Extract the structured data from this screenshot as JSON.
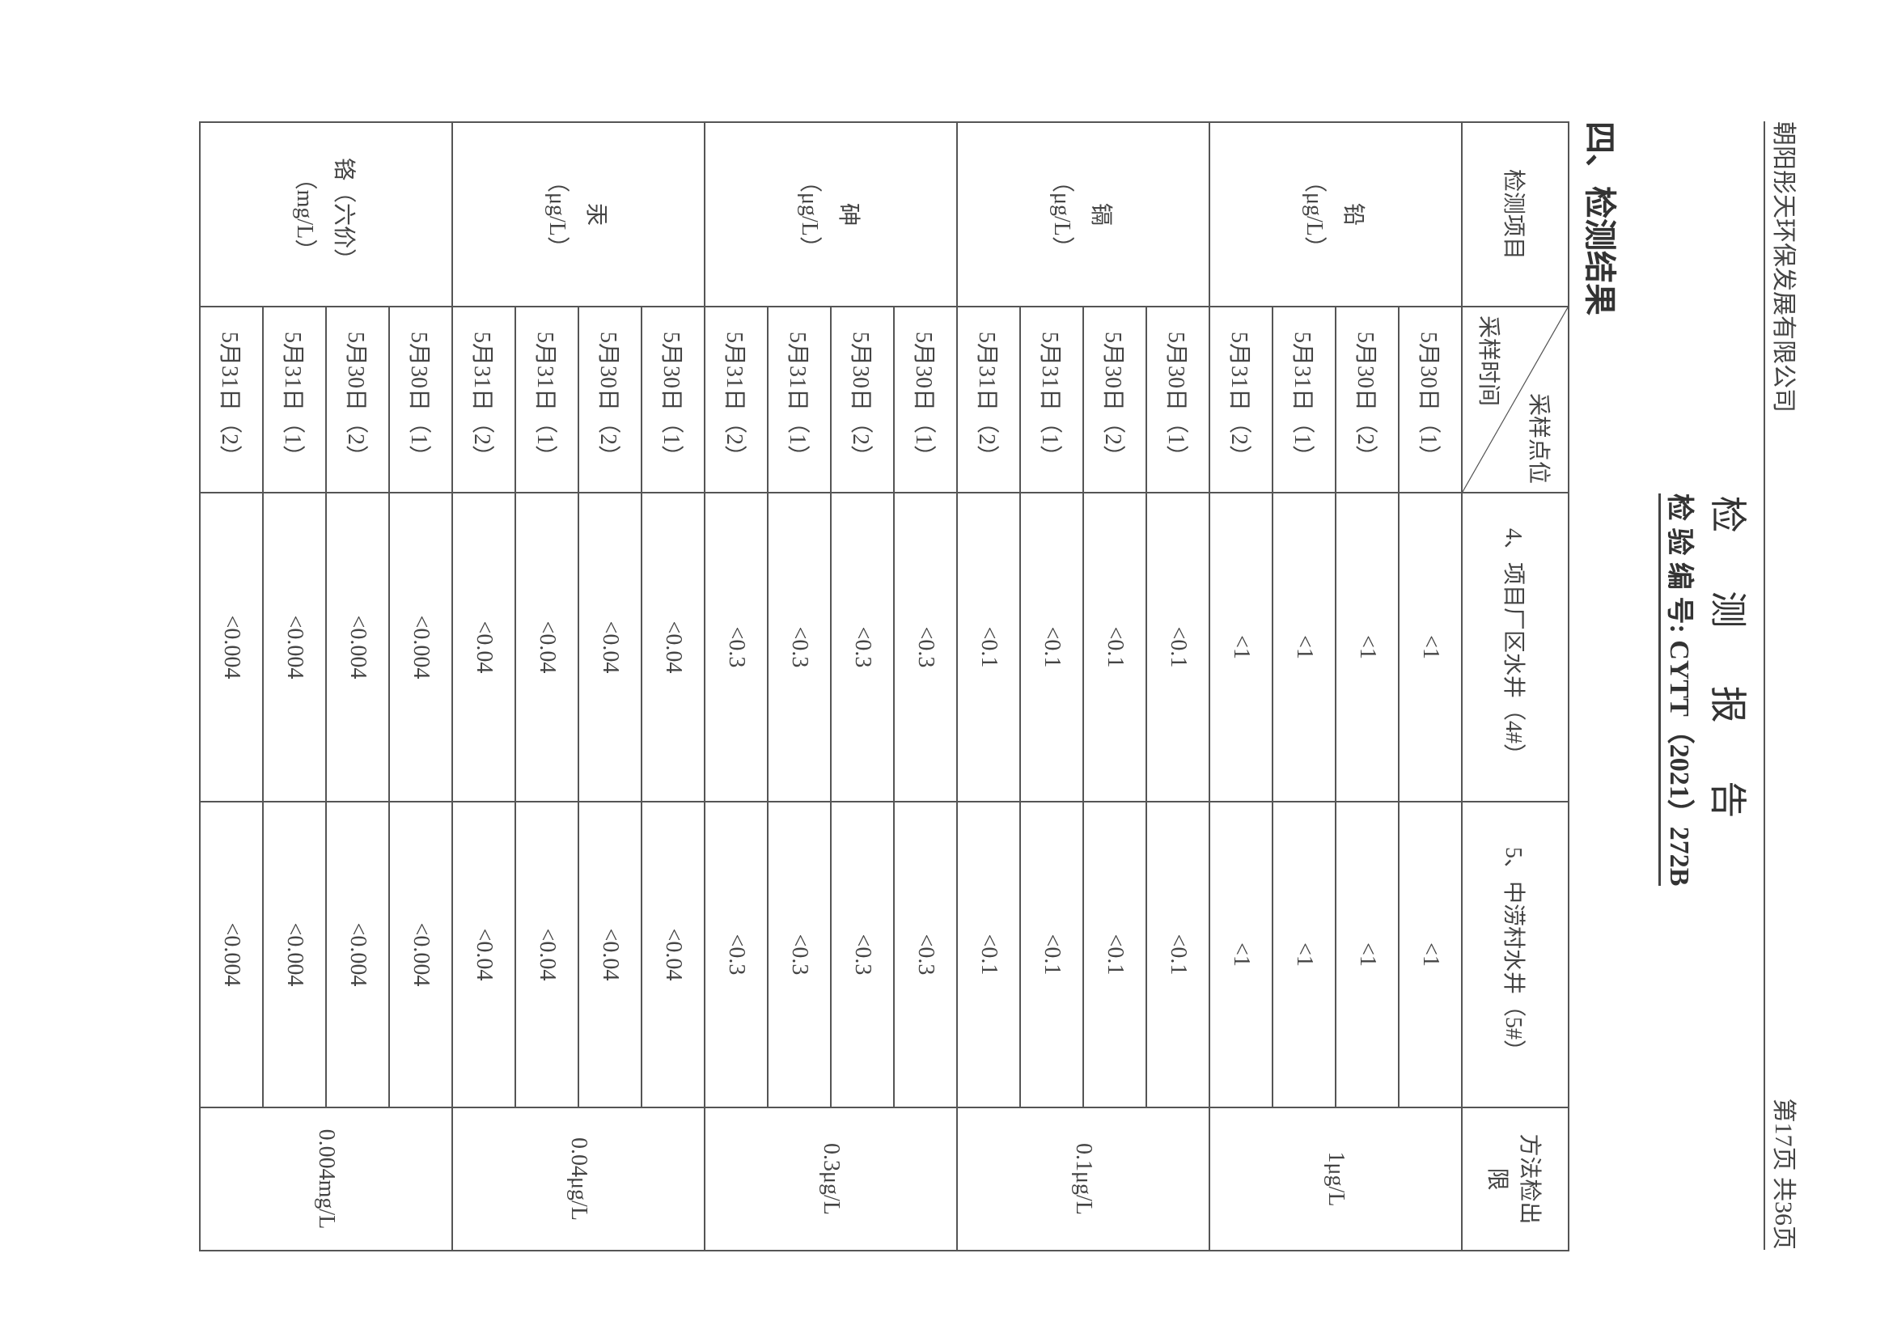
{
  "header": {
    "company": "朝阳彤天环保发展有限公司",
    "page": "第17页  共36页"
  },
  "title": "检 测 报 告",
  "report_code": "检 验 编 号: CYTT（2021）272B",
  "section": "四、检测结果",
  "table": {
    "col_item": "检测项目",
    "diag_top": "采样点位",
    "diag_bottom": "采样时间",
    "col_site4": "4、项目厂区水井（4#）",
    "col_site5": "5、中涝村水井（5#）",
    "col_limit": "方法检出限",
    "groups": [
      {
        "item": "铅",
        "unit": "（μg/L）",
        "limit": "1μg/L",
        "rows": [
          {
            "time": "5月30日（1）",
            "s4": "<1",
            "s5": "<1"
          },
          {
            "time": "5月30日（2）",
            "s4": "<1",
            "s5": "<1"
          },
          {
            "time": "5月31日（1）",
            "s4": "<1",
            "s5": "<1"
          },
          {
            "time": "5月31日（2）",
            "s4": "<1",
            "s5": "<1"
          }
        ]
      },
      {
        "item": "镉",
        "unit": "（μg/L）",
        "limit": "0.1μg/L",
        "rows": [
          {
            "time": "5月30日（1）",
            "s4": "<0.1",
            "s5": "<0.1"
          },
          {
            "time": "5月30日（2）",
            "s4": "<0.1",
            "s5": "<0.1"
          },
          {
            "time": "5月31日（1）",
            "s4": "<0.1",
            "s5": "<0.1"
          },
          {
            "time": "5月31日（2）",
            "s4": "<0.1",
            "s5": "<0.1"
          }
        ]
      },
      {
        "item": "砷",
        "unit": "（μg/L）",
        "limit": "0.3μg/L",
        "rows": [
          {
            "time": "5月30日（1）",
            "s4": "<0.3",
            "s5": "<0.3"
          },
          {
            "time": "5月30日（2）",
            "s4": "<0.3",
            "s5": "<0.3"
          },
          {
            "time": "5月31日（1）",
            "s4": "<0.3",
            "s5": "<0.3"
          },
          {
            "time": "5月31日（2）",
            "s4": "<0.3",
            "s5": "<0.3"
          }
        ]
      },
      {
        "item": "汞",
        "unit": "（μg/L）",
        "limit": "0.04μg/L",
        "rows": [
          {
            "time": "5月30日（1）",
            "s4": "<0.04",
            "s5": "<0.04"
          },
          {
            "time": "5月30日（2）",
            "s4": "<0.04",
            "s5": "<0.04"
          },
          {
            "time": "5月31日（1）",
            "s4": "<0.04",
            "s5": "<0.04"
          },
          {
            "time": "5月31日（2）",
            "s4": "<0.04",
            "s5": "<0.04"
          }
        ]
      },
      {
        "item": "铬（六价）",
        "unit": "（mg/L）",
        "limit": "0.004mg/L",
        "rows": [
          {
            "time": "5月30日（1）",
            "s4": "<0.004",
            "s5": "<0.004"
          },
          {
            "time": "5月30日（2）",
            "s4": "<0.004",
            "s5": "<0.004"
          },
          {
            "time": "5月31日（1）",
            "s4": "<0.004",
            "s5": "<0.004"
          },
          {
            "time": "5月31日（2）",
            "s4": "<0.004",
            "s5": "<0.004"
          }
        ]
      }
    ]
  }
}
